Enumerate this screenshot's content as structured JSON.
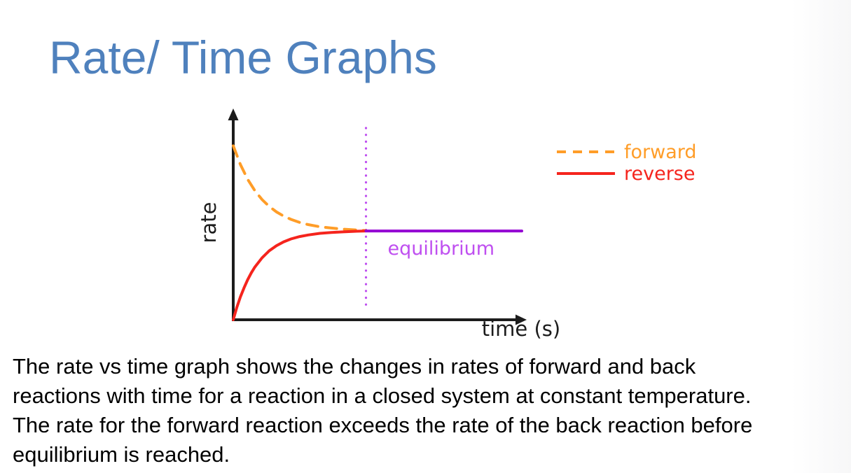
{
  "title": {
    "text": "Rate/ Time Graphs",
    "color": "#4F81BD"
  },
  "body": {
    "lines": [
      "The rate vs time graph shows the changes in rates of forward and back",
      "reactions with time for a reaction in a closed system at constant temperature.",
      "The rate for the forward reaction exceeds the rate of the back reaction before",
      "equilibrium is reached."
    ]
  },
  "chart_data": {
    "type": "line",
    "title": "",
    "xlabel": "time (s)",
    "ylabel": "rate",
    "x_range": [
      0,
      1
    ],
    "y_range": [
      0,
      1
    ],
    "grid": false,
    "axes_numeric": false,
    "axis_color": "#1c1c1c",
    "legend_position": "upper right, outside plot",
    "equilibrium_marker": {
      "x": 0.46,
      "label": "equilibrium",
      "color": "#BF4FF0"
    },
    "series": [
      {
        "name": "forward",
        "color": "#FF9D28",
        "dash": true,
        "in_legend": true,
        "points": [
          [
            0,
            0.96
          ],
          [
            0.025,
            0.856
          ],
          [
            0.05,
            0.775
          ],
          [
            0.075,
            0.712
          ],
          [
            0.1,
            0.663
          ],
          [
            0.125,
            0.625
          ],
          [
            0.15,
            0.595
          ],
          [
            0.175,
            0.572
          ],
          [
            0.2,
            0.554
          ],
          [
            0.23,
            0.537
          ],
          [
            0.26,
            0.525
          ],
          [
            0.3,
            0.513
          ],
          [
            0.34,
            0.506
          ],
          [
            0.38,
            0.5
          ],
          [
            0.42,
            0.496
          ],
          [
            0.46,
            0.492
          ]
        ]
      },
      {
        "name": "reverse",
        "color": "#F5241D",
        "dash": false,
        "in_legend": true,
        "points": [
          [
            0,
            0.0
          ],
          [
            0.0125,
            0.068
          ],
          [
            0.025,
            0.127
          ],
          [
            0.0375,
            0.177
          ],
          [
            0.05,
            0.221
          ],
          [
            0.0625,
            0.259
          ],
          [
            0.075,
            0.291
          ],
          [
            0.1,
            0.342
          ],
          [
            0.125,
            0.381
          ],
          [
            0.15,
            0.409
          ],
          [
            0.175,
            0.43
          ],
          [
            0.2,
            0.446
          ],
          [
            0.23,
            0.459
          ],
          [
            0.26,
            0.468
          ],
          [
            0.3,
            0.477
          ],
          [
            0.34,
            0.482
          ],
          [
            0.38,
            0.485
          ],
          [
            0.42,
            0.488
          ],
          [
            0.46,
            0.49
          ]
        ]
      },
      {
        "name": "equilibrium",
        "color": "#9400D3",
        "dash": false,
        "in_legend": false,
        "points": [
          [
            0.46,
            0.49
          ],
          [
            1.0,
            0.49
          ]
        ]
      }
    ],
    "legend": [
      {
        "label": "forward",
        "color": "#FF9D28",
        "dash": true
      },
      {
        "label": "reverse",
        "color": "#F5241D",
        "dash": false
      }
    ]
  }
}
